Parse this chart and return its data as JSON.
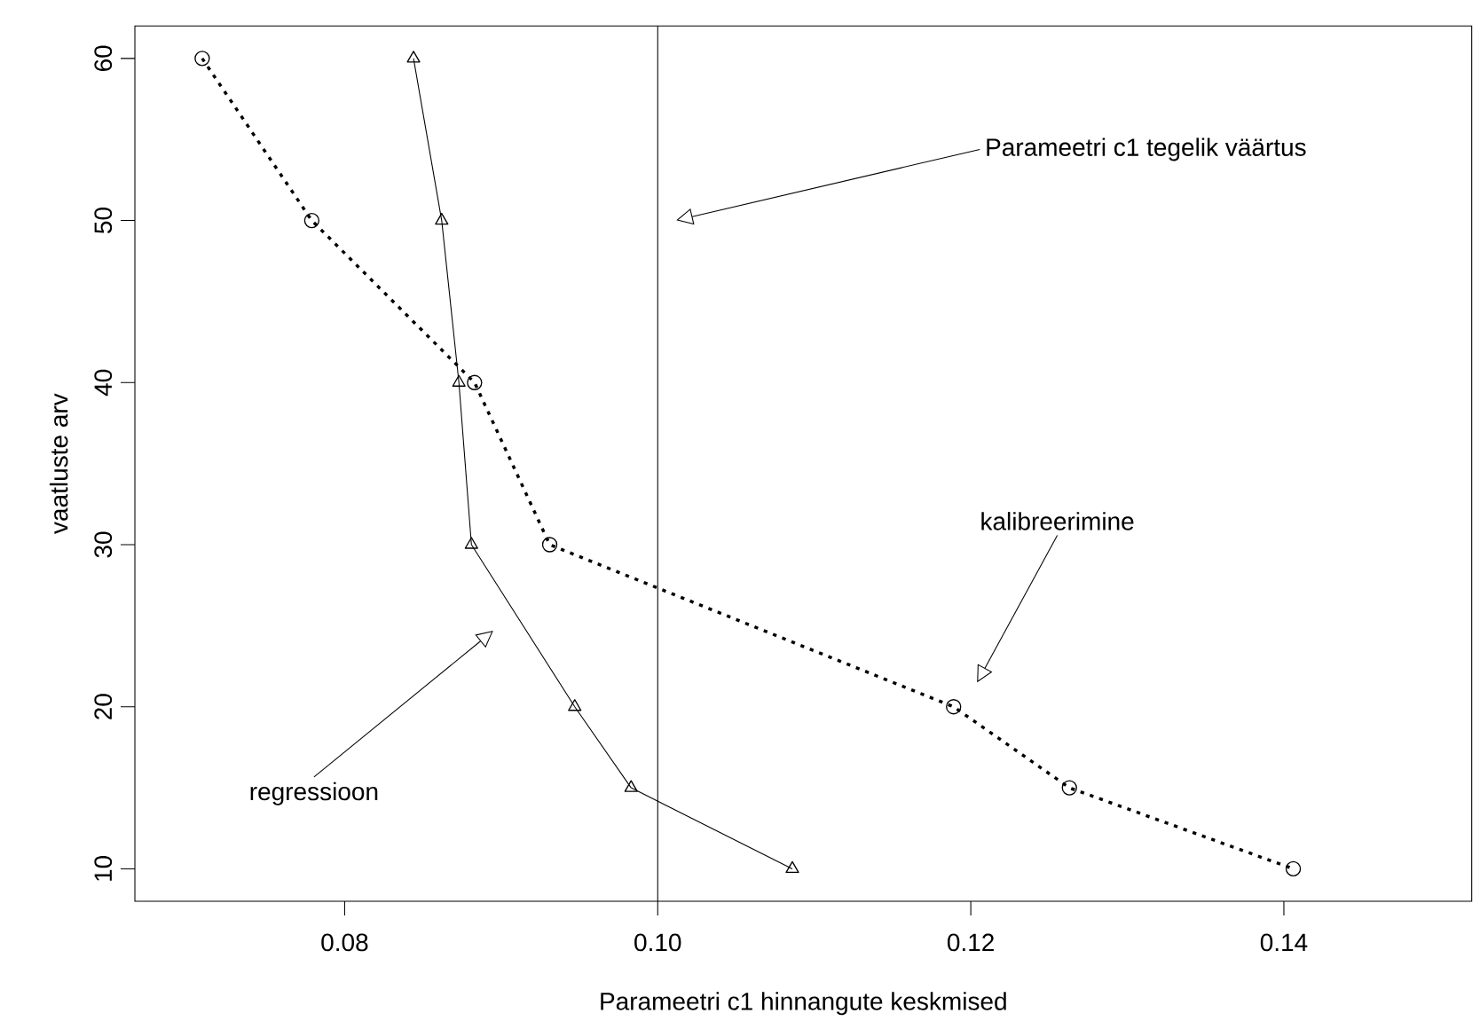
{
  "chart_data": {
    "type": "line",
    "xlabel": "Parameetri c1 hinnangute keskmised",
    "ylabel": "vaatluste arv",
    "xlim": [
      0.0666,
      0.152
    ],
    "ylim": [
      8,
      62
    ],
    "xticks": [
      {
        "value": 0.08,
        "label": "0.08"
      },
      {
        "value": 0.1,
        "label": "0.10"
      },
      {
        "value": 0.12,
        "label": "0.12"
      },
      {
        "value": 0.14,
        "label": "0.14"
      }
    ],
    "yticks": [
      10,
      20,
      30,
      40,
      50,
      60
    ],
    "grid": false,
    "series": [
      {
        "color": "#000000",
        "marker": "circle",
        "line_style": "dotted",
        "x": [
          0.0709,
          0.0779,
          0.0883,
          0.0931,
          0.1189,
          0.1263,
          0.1406
        ],
        "values": [
          60,
          50,
          40,
          30,
          20,
          15,
          10
        ]
      },
      {
        "color": "#000000",
        "marker": "triangle",
        "line_style": "solid",
        "x": [
          0.0844,
          0.0862,
          0.0873,
          0.0881,
          0.0947,
          0.0983,
          0.1086
        ],
        "values": [
          60,
          50,
          40,
          30,
          20,
          15,
          10
        ]
      }
    ],
    "ref_lines": [
      {
        "axis": "x",
        "value": 0.1,
        "color": "#000000"
      }
    ],
    "annotations": [
      "Parameetri c1 tegelik väärtus",
      "kalibreerimine",
      "regressioon"
    ]
  }
}
